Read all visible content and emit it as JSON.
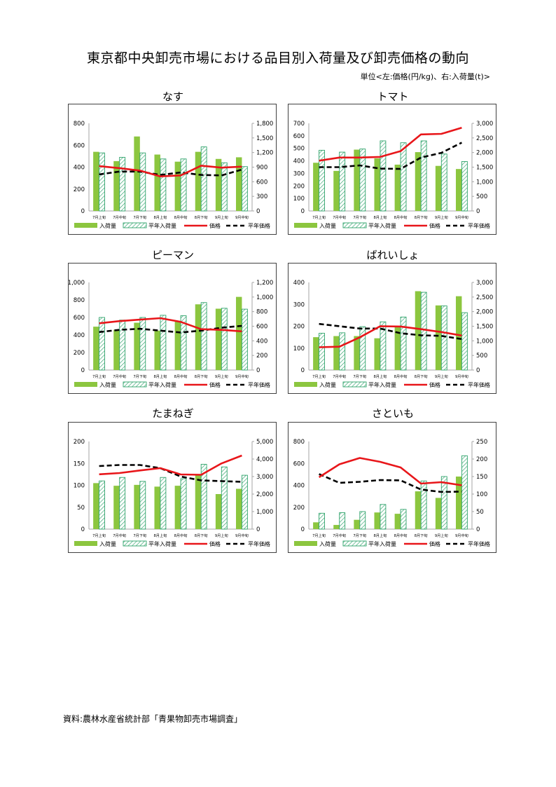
{
  "header": {
    "title": "東京都中央卸売市場における品目別入荷量及び卸売価格の動向",
    "unit_note": "単位<左:価格(円/kg)、右:入荷量(t)>"
  },
  "footer": {
    "source": "資料:農林水産省統計部「青果物卸売市場調査」"
  },
  "colors": {
    "bar": "#8cc63f",
    "normal_bar_stripe": "#2fa36b",
    "price": "#e8161a",
    "normal_price": "#000000",
    "axis": "#a6a6a6"
  },
  "chart_data": [
    {
      "type": "bar+line",
      "title": "なす",
      "categories": [
        "7月上旬",
        "7月中旬",
        "7月下旬",
        "8月上旬",
        "8月中旬",
        "8月下旬",
        "9月上旬",
        "9月中旬"
      ],
      "left_axis": {
        "range": [
          0,
          800
        ],
        "ticks": [
          "0",
          "200",
          "400",
          "600",
          "800"
        ]
      },
      "right_axis": {
        "range": [
          0,
          1800
        ],
        "ticks": [
          "0",
          "300",
          "600",
          "900",
          "1,200",
          "1,500",
          "1,800"
        ]
      },
      "series": [
        {
          "name": "入荷量",
          "kind": "bar",
          "axis": "left",
          "values": [
            540,
            455,
            680,
            515,
            450,
            540,
            475,
            490
          ]
        },
        {
          "name": "平年入荷量",
          "kind": "hatched-bar",
          "axis": "left",
          "values": [
            530,
            490,
            530,
            475,
            475,
            585,
            440,
            405
          ]
        },
        {
          "name": "価格",
          "kind": "line",
          "axis": "right",
          "values": [
            920,
            880,
            830,
            710,
            730,
            930,
            890,
            910
          ]
        },
        {
          "name": "平年価格",
          "kind": "dashed-line",
          "axis": "right",
          "values": [
            750,
            810,
            810,
            740,
            790,
            740,
            730,
            850
          ]
        }
      ],
      "legend": "bottom"
    },
    {
      "type": "bar+line",
      "title": "トマト",
      "categories": [
        "7月上旬",
        "7月中旬",
        "7月下旬",
        "8月上旬",
        "8月中旬",
        "8月下旬",
        "9月上旬",
        "9月中旬"
      ],
      "left_axis": {
        "range": [
          0,
          700
        ],
        "ticks": [
          "0",
          "100",
          "200",
          "300",
          "400",
          "500",
          "600",
          "700"
        ]
      },
      "right_axis": {
        "range": [
          0,
          3000
        ],
        "ticks": [
          "0",
          "500",
          "1,000",
          "1,500",
          "2,000",
          "2,500",
          "3,000"
        ]
      },
      "series": [
        {
          "name": "入荷量",
          "kind": "bar",
          "axis": "left",
          "values": [
            385,
            320,
            490,
            420,
            370,
            470,
            360,
            335
          ]
        },
        {
          "name": "平年入荷量",
          "kind": "hatched-bar",
          "axis": "left",
          "values": [
            485,
            470,
            495,
            560,
            545,
            560,
            455,
            395
          ]
        },
        {
          "name": "価格",
          "kind": "line",
          "axis": "right",
          "values": [
            1720,
            1830,
            1830,
            1850,
            2050,
            2620,
            2640,
            2850
          ]
        },
        {
          "name": "平年価格",
          "kind": "dashed-line",
          "axis": "right",
          "values": [
            1500,
            1500,
            1560,
            1450,
            1440,
            1830,
            1990,
            2340
          ]
        }
      ],
      "legend": "bottom"
    },
    {
      "type": "bar+line",
      "title": "ピーマン",
      "categories": [
        "7月上旬",
        "7月中旬",
        "7月下旬",
        "8月上旬",
        "8月中旬",
        "8月下旬",
        "9月上旬",
        "9月中旬"
      ],
      "left_axis": {
        "range": [
          0,
          1000
        ],
        "ticks": [
          "0",
          "200",
          "400",
          "600",
          "800",
          "1,000"
        ]
      },
      "right_axis": {
        "range": [
          0,
          1200
        ],
        "ticks": [
          "0",
          "200",
          "400",
          "600",
          "800",
          "1,000",
          "1,200"
        ]
      },
      "series": [
        {
          "name": "入荷量",
          "kind": "bar",
          "axis": "left",
          "values": [
            495,
            460,
            540,
            450,
            560,
            750,
            700,
            835
          ]
        },
        {
          "name": "平年入荷量",
          "kind": "hatched-bar",
          "axis": "left",
          "values": [
            600,
            570,
            600,
            625,
            620,
            770,
            705,
            695
          ]
        },
        {
          "name": "価格",
          "kind": "line",
          "axis": "right",
          "values": [
            640,
            670,
            690,
            710,
            660,
            560,
            550,
            530
          ]
        },
        {
          "name": "平年価格",
          "kind": "dashed-line",
          "axis": "right",
          "values": [
            520,
            550,
            565,
            540,
            515,
            540,
            580,
            605
          ]
        }
      ],
      "legend": "bottom"
    },
    {
      "type": "bar+line",
      "title": "ばれいしょ",
      "categories": [
        "7月上旬",
        "7月中旬",
        "7月下旬",
        "8月上旬",
        "8月中旬",
        "8月下旬",
        "9月上旬",
        "9月中旬"
      ],
      "left_axis": {
        "range": [
          0,
          400
        ],
        "ticks": [
          "0",
          "100",
          "200",
          "300",
          "400"
        ]
      },
      "right_axis": {
        "range": [
          0,
          3000
        ],
        "ticks": [
          "0",
          "500",
          "1,000",
          "1,500",
          "2,000",
          "2,500",
          "3,000"
        ]
      },
      "series": [
        {
          "name": "入荷量",
          "kind": "bar",
          "axis": "left",
          "values": [
            150,
            155,
            155,
            145,
            200,
            360,
            295,
            337
          ]
        },
        {
          "name": "平年入荷量",
          "kind": "hatched-bar",
          "axis": "left",
          "values": [
            168,
            170,
            198,
            220,
            242,
            355,
            293,
            262
          ]
        },
        {
          "name": "価格",
          "kind": "line",
          "axis": "right",
          "values": [
            780,
            800,
            1120,
            1500,
            1490,
            1400,
            1300,
            1180
          ]
        },
        {
          "name": "平年価格",
          "kind": "dashed-line",
          "axis": "right",
          "values": [
            1580,
            1500,
            1420,
            1420,
            1260,
            1190,
            1170,
            1060
          ]
        }
      ],
      "legend": "bottom"
    },
    {
      "type": "bar+line",
      "title": "たまねぎ",
      "categories": [
        "7月上旬",
        "7月中旬",
        "7月下旬",
        "8月上旬",
        "8月中旬",
        "8月下旬",
        "9月上旬",
        "9月中旬"
      ],
      "left_axis": {
        "range": [
          0,
          200
        ],
        "ticks": [
          "0",
          "50",
          "100",
          "150",
          "200"
        ]
      },
      "right_axis": {
        "range": [
          0,
          5000
        ],
        "ticks": [
          "0",
          "1,000",
          "2,000",
          "3,000",
          "4,000",
          "5,000"
        ]
      },
      "series": [
        {
          "name": "入荷量",
          "kind": "bar",
          "axis": "left",
          "values": [
            105,
            99,
            101,
            97,
            99,
            125,
            80,
            92
          ]
        },
        {
          "name": "平年入荷量",
          "kind": "hatched-bar",
          "axis": "left",
          "values": [
            110,
            118,
            109,
            118,
            115,
            148,
            142,
            123
          ]
        },
        {
          "name": "価格",
          "kind": "line",
          "axis": "right",
          "values": [
            3130,
            3200,
            3350,
            3480,
            3120,
            3100,
            3750,
            4200
          ]
        },
        {
          "name": "平年価格",
          "kind": "dashed-line",
          "axis": "right",
          "values": [
            3600,
            3660,
            3660,
            3480,
            3000,
            2780,
            2740,
            2700
          ]
        }
      ],
      "legend": "bottom"
    },
    {
      "type": "bar+line",
      "title": "さといも",
      "categories": [
        "7月上旬",
        "7月中旬",
        "7月下旬",
        "8月上旬",
        "8月中旬",
        "8月下旬",
        "9月上旬",
        "9月中旬"
      ],
      "left_axis": {
        "range": [
          0,
          800
        ],
        "ticks": [
          "0",
          "200",
          "400",
          "600",
          "800"
        ]
      },
      "right_axis": {
        "range": [
          0,
          250
        ],
        "ticks": [
          "0",
          "50",
          "100",
          "150",
          "200",
          "250"
        ]
      },
      "series": [
        {
          "name": "入荷量",
          "kind": "bar",
          "axis": "left",
          "values": [
            62,
            38,
            85,
            152,
            140,
            345,
            285,
            480
          ]
        },
        {
          "name": "平年入荷量",
          "kind": "hatched-bar",
          "axis": "left",
          "values": [
            145,
            150,
            160,
            225,
            180,
            440,
            480,
            670
          ]
        },
        {
          "name": "価格",
          "kind": "line",
          "axis": "right",
          "values": [
            148,
            185,
            203,
            192,
            176,
            130,
            134,
            125
          ]
        },
        {
          "name": "平年価格",
          "kind": "dashed-line",
          "axis": "right",
          "values": [
            157,
            132,
            135,
            140,
            139,
            113,
            106,
            107
          ]
        }
      ],
      "legend": "bottom"
    }
  ]
}
